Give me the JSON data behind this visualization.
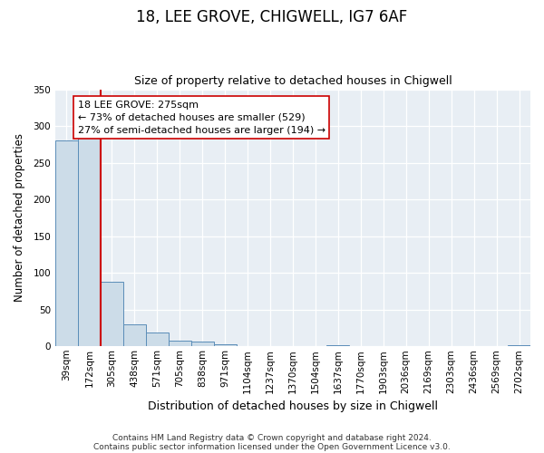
{
  "title": "18, LEE GROVE, CHIGWELL, IG7 6AF",
  "subtitle": "Size of property relative to detached houses in Chigwell",
  "xlabel": "Distribution of detached houses by size in Chigwell",
  "ylabel": "Number of detached properties",
  "bin_labels": [
    "39sqm",
    "172sqm",
    "305sqm",
    "438sqm",
    "571sqm",
    "705sqm",
    "838sqm",
    "971sqm",
    "1104sqm",
    "1237sqm",
    "1370sqm",
    "1504sqm",
    "1637sqm",
    "1770sqm",
    "1903sqm",
    "2036sqm",
    "2169sqm",
    "2303sqm",
    "2436sqm",
    "2569sqm",
    "2702sqm"
  ],
  "bar_heights": [
    280,
    291,
    88,
    30,
    19,
    7,
    6,
    3,
    0,
    0,
    0,
    0,
    2,
    0,
    0,
    0,
    0,
    0,
    0,
    0,
    2
  ],
  "bar_color": "#ccdce8",
  "bar_edge_color": "#5b8db8",
  "property_line_bin": 2,
  "property_line_color": "#cc0000",
  "ylim": [
    0,
    350
  ],
  "yticks": [
    0,
    50,
    100,
    150,
    200,
    250,
    300,
    350
  ],
  "annotation_title": "18 LEE GROVE: 275sqm",
  "annotation_line1": "← 73% of detached houses are smaller (529)",
  "annotation_line2": "27% of semi-detached houses are larger (194) →",
  "footer_line1": "Contains HM Land Registry data © Crown copyright and database right 2024.",
  "footer_line2": "Contains public sector information licensed under the Open Government Licence v3.0.",
  "bg_color": "#ffffff",
  "plot_bg_color": "#e8eef4",
  "grid_color": "#ffffff",
  "title_fontsize": 12,
  "subtitle_fontsize": 9,
  "tick_fontsize": 7.5,
  "ylabel_fontsize": 8.5,
  "xlabel_fontsize": 9,
  "footer_fontsize": 6.5,
  "annotation_fontsize": 8
}
